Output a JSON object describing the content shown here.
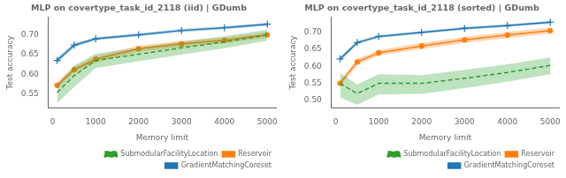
{
  "chart_data": [
    {
      "type": "line",
      "title": "MLP on covertype_task_id_2118 (iid) | GDumb",
      "xlabel": "Memory limit",
      "ylabel": "Test accuracy",
      "xlim": [
        -100,
        5200
      ],
      "ylim": [
        0.515,
        0.745
      ],
      "xticks": [
        0,
        1000,
        2000,
        3000,
        4000,
        5000
      ],
      "yticks": [
        0.55,
        {
          "value": 0.6,
          "label": "0.60"
        },
        0.65,
        {
          "value": 0.7,
          "label": "0.70"
        }
      ],
      "grid": false,
      "legend": "lower right",
      "x": [
        100,
        500,
        1000,
        2000,
        3000,
        4000,
        5000
      ],
      "series": [
        {
          "name": "SubmodularFacilityLocation",
          "color": "#2ca02c",
          "marker": "none",
          "line_style": "dashed",
          "values": [
            0.554,
            0.597,
            0.635,
            0.651,
            0.667,
            0.682,
            0.7
          ],
          "lo": [
            0.527,
            0.568,
            0.616,
            0.633,
            0.65,
            0.666,
            0.685
          ],
          "hi": [
            0.574,
            0.622,
            0.652,
            0.668,
            0.683,
            0.697,
            0.713
          ]
        },
        {
          "name": "Reservoir",
          "color": "#ff7f0e",
          "marker": "circle",
          "line_style": "solid",
          "values": [
            0.572,
            0.612,
            0.638,
            0.665,
            0.677,
            0.686,
            0.7
          ],
          "lo": [
            0.563,
            0.604,
            0.63,
            0.657,
            0.669,
            0.679,
            0.693
          ],
          "hi": [
            0.581,
            0.62,
            0.646,
            0.673,
            0.685,
            0.693,
            0.707
          ]
        },
        {
          "name": "GradientMatchingCoreset",
          "color": "#1f77b4",
          "marker": "plus",
          "line_style": "solid",
          "values": [
            0.635,
            0.674,
            0.69,
            0.7,
            0.711,
            0.718,
            0.727
          ],
          "lo": [
            0.628,
            0.669,
            0.686,
            0.696,
            0.707,
            0.714,
            0.723
          ],
          "hi": [
            0.642,
            0.679,
            0.694,
            0.704,
            0.715,
            0.722,
            0.731
          ]
        }
      ]
    },
    {
      "type": "line",
      "title": "MLP on covertype_task_id_2118 (sorted) | GDumb",
      "xlabel": "Memory limit",
      "ylabel": "Test accuracy",
      "xlim": [
        -100,
        5200
      ],
      "ylim": [
        0.478,
        0.745
      ],
      "xticks": [
        0,
        1000,
        2000,
        3000,
        4000,
        5000
      ],
      "yticks": [
        {
          "value": 0.5,
          "label": "0.50"
        },
        0.55,
        {
          "value": 0.6,
          "label": "0.60"
        },
        0.65,
        {
          "value": 0.7,
          "label": "0.70"
        }
      ],
      "grid": false,
      "legend": "lower right",
      "x": [
        100,
        500,
        1000,
        2000,
        3000,
        4000,
        5000
      ],
      "series": [
        {
          "name": "SubmodularFacilityLocation",
          "color": "#2ca02c",
          "marker": "none",
          "line_style": "dashed",
          "values": [
            0.55,
            0.52,
            0.55,
            0.55,
            0.565,
            0.582,
            0.603
          ],
          "lo": [
            0.508,
            0.487,
            0.517,
            0.519,
            0.536,
            0.555,
            0.577
          ],
          "hi": [
            0.58,
            0.547,
            0.577,
            0.574,
            0.59,
            0.606,
            0.626
          ]
        },
        {
          "name": "Reservoir",
          "color": "#ff7f0e",
          "marker": "circle",
          "line_style": "solid",
          "values": [
            0.55,
            0.613,
            0.64,
            0.66,
            0.678,
            0.692,
            0.705
          ],
          "lo": [
            0.541,
            0.604,
            0.632,
            0.651,
            0.669,
            0.683,
            0.696
          ],
          "hi": [
            0.559,
            0.622,
            0.648,
            0.669,
            0.687,
            0.701,
            0.714
          ]
        },
        {
          "name": "GradientMatchingCoreset",
          "color": "#1f77b4",
          "marker": "plus",
          "line_style": "solid",
          "values": [
            0.622,
            0.67,
            0.688,
            0.7,
            0.712,
            0.72,
            0.73
          ],
          "lo": [
            0.615,
            0.665,
            0.684,
            0.696,
            0.708,
            0.716,
            0.726
          ],
          "hi": [
            0.629,
            0.675,
            0.692,
            0.704,
            0.716,
            0.724,
            0.734
          ]
        }
      ]
    }
  ]
}
